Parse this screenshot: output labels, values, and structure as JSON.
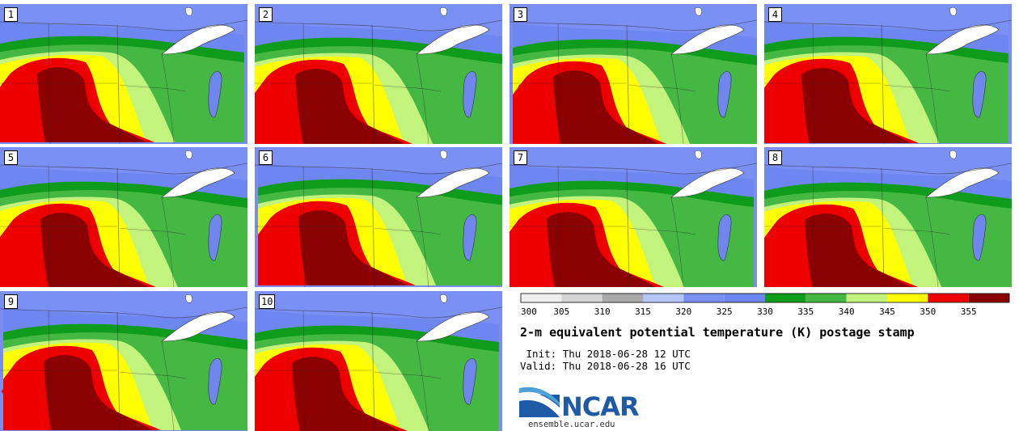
{
  "panels": [
    {
      "label": "1"
    },
    {
      "label": "2"
    },
    {
      "label": "3"
    },
    {
      "label": "4"
    },
    {
      "label": "5"
    },
    {
      "label": "6"
    },
    {
      "label": "7"
    },
    {
      "label": "8"
    },
    {
      "label": "9"
    },
    {
      "label": "10"
    }
  ],
  "legend": {
    "colors": [
      "#efefef",
      "#d4d4d4",
      "#a9a9a9",
      "#b4c6f8",
      "#7b90f4",
      "#6e86f0",
      "#0f9b1c",
      "#45b843",
      "#c2f37c",
      "#ffff00",
      "#ee0000",
      "#8b0000"
    ],
    "ticks": [
      "300",
      "305",
      "310",
      "315",
      "320",
      "325",
      "330",
      "335",
      "340",
      "345",
      "350",
      "355"
    ]
  },
  "title": "2-m equivalent potential temperature (K) postage stamp",
  "init_line": " Init: Thu 2018-06-28 12 UTC",
  "valid_line": "Valid: Thu 2018-06-28 16 UTC",
  "logo": {
    "word": "NCAR",
    "url": "ensemble.ucar.edu"
  }
}
